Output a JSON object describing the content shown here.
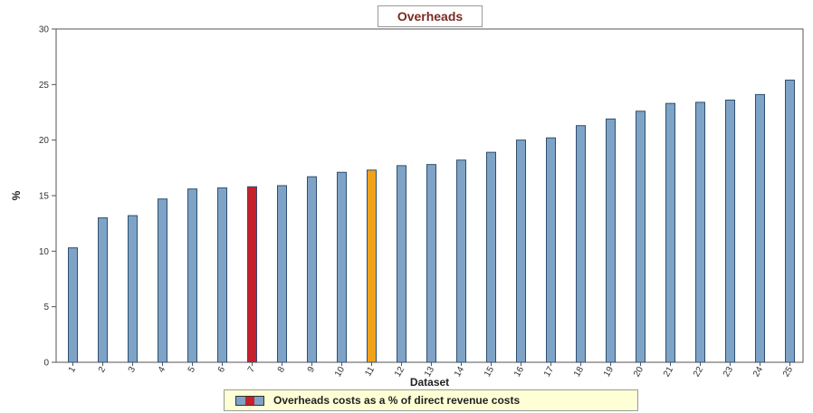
{
  "chart_data": {
    "type": "bar",
    "title": "Overheads",
    "xlabel": "Dataset",
    "ylabel": "%",
    "ylim": [
      0,
      30
    ],
    "yticks": [
      0,
      5,
      10,
      15,
      20,
      25,
      30
    ],
    "categories": [
      "1",
      "2",
      "3",
      "4",
      "5",
      "6",
      "7",
      "8",
      "9",
      "10",
      "11",
      "12",
      "13",
      "14",
      "15",
      "16",
      "17",
      "18",
      "19",
      "20",
      "21",
      "22",
      "23",
      "24",
      "25"
    ],
    "values": [
      10.3,
      13.0,
      13.2,
      14.7,
      15.6,
      15.7,
      15.8,
      15.9,
      16.7,
      17.1,
      17.3,
      17.7,
      17.8,
      18.2,
      18.9,
      20.0,
      20.2,
      21.3,
      21.9,
      22.6,
      23.3,
      23.4,
      23.6,
      24.1,
      25.4
    ],
    "colors": {
      "default": "#7ea3c6",
      "highlight_primary": "#c8202a",
      "highlight_secondary": "#f0a21a",
      "border": "#2f4f6f"
    },
    "highlights": {
      "7": "highlight_primary",
      "11": "highlight_secondary"
    },
    "legend": {
      "label": "Overheads costs as a % of direct revenue costs",
      "position": "bottom-center"
    },
    "grid": false
  }
}
